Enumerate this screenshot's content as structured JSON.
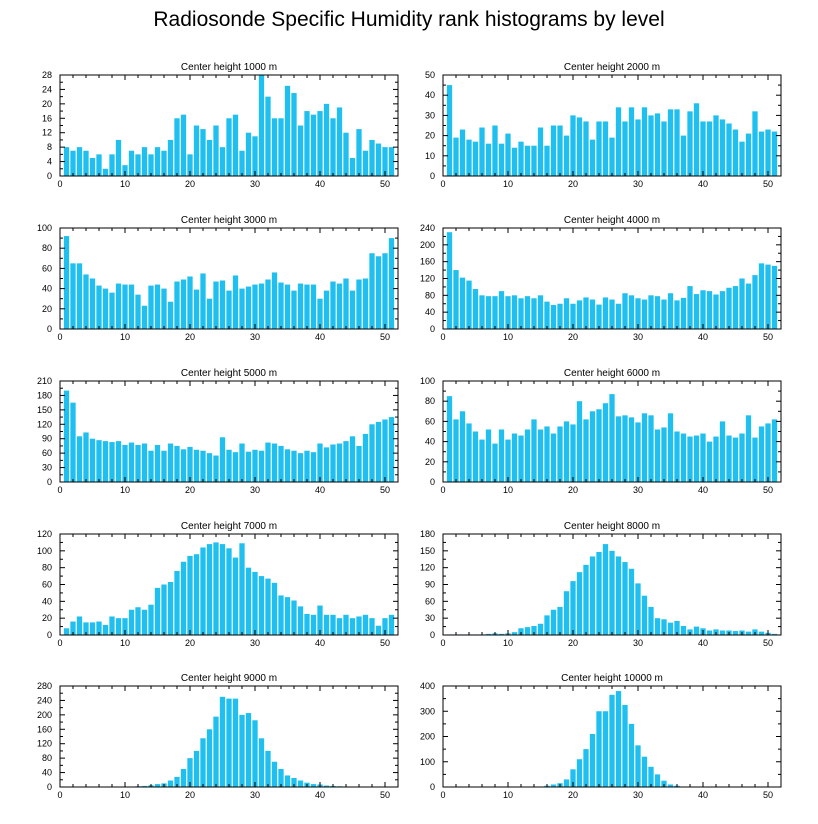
{
  "title": "Radiosonde Specific Humidity rank histograms by level",
  "bar_color": "#1fbff0",
  "xlim": [
    0,
    52
  ],
  "xticks": [
    0,
    10,
    20,
    30,
    40,
    50
  ],
  "chart_data": [
    {
      "type": "bar",
      "title": "Center height 1000 m",
      "ylim": [
        0,
        28
      ],
      "yticks": [
        0,
        4,
        8,
        12,
        16,
        20,
        24,
        28
      ],
      "x": [
        1,
        2,
        3,
        4,
        5,
        6,
        7,
        8,
        9,
        10,
        11,
        12,
        13,
        14,
        15,
        16,
        17,
        18,
        19,
        20,
        21,
        22,
        23,
        24,
        25,
        26,
        27,
        28,
        29,
        30,
        31,
        32,
        33,
        34,
        35,
        36,
        37,
        38,
        39,
        40,
        41,
        42,
        43,
        44,
        45,
        46,
        47,
        48,
        49,
        50,
        51
      ],
      "values": [
        8,
        7,
        8,
        7,
        5,
        6,
        2,
        6,
        10,
        3,
        7,
        6,
        8,
        6,
        8,
        7,
        10,
        16,
        17,
        6,
        14,
        13,
        10,
        14,
        8,
        16,
        17,
        7,
        12,
        11,
        28,
        22,
        16,
        16,
        25,
        23,
        14,
        18,
        17,
        18,
        20,
        16,
        19,
        12,
        5,
        13,
        7,
        10,
        9,
        8,
        8
      ]
    },
    {
      "type": "bar",
      "title": "Center height 2000 m",
      "ylim": [
        0,
        50
      ],
      "yticks": [
        0,
        10,
        20,
        30,
        40,
        50
      ],
      "x": [
        1,
        2,
        3,
        4,
        5,
        6,
        7,
        8,
        9,
        10,
        11,
        12,
        13,
        14,
        15,
        16,
        17,
        18,
        19,
        20,
        21,
        22,
        23,
        24,
        25,
        26,
        27,
        28,
        29,
        30,
        31,
        32,
        33,
        34,
        35,
        36,
        37,
        38,
        39,
        40,
        41,
        42,
        43,
        44,
        45,
        46,
        47,
        48,
        49,
        50,
        51
      ],
      "values": [
        45,
        19,
        23,
        18,
        17,
        24,
        16,
        25,
        16,
        21,
        14,
        17,
        15,
        15,
        24,
        15,
        25,
        25,
        20,
        30,
        29,
        27,
        18,
        27,
        27,
        19,
        34,
        27,
        34,
        28,
        34,
        30,
        31,
        27,
        33,
        33,
        20,
        32,
        36,
        27,
        27,
        30,
        28,
        26,
        23,
        17,
        21,
        32,
        22,
        23,
        22
      ]
    },
    {
      "type": "bar",
      "title": "Center height 3000 m",
      "ylim": [
        0,
        100
      ],
      "yticks": [
        0,
        20,
        40,
        60,
        80,
        100
      ],
      "x": [
        1,
        2,
        3,
        4,
        5,
        6,
        7,
        8,
        9,
        10,
        11,
        12,
        13,
        14,
        15,
        16,
        17,
        18,
        19,
        20,
        21,
        22,
        23,
        24,
        25,
        26,
        27,
        28,
        29,
        30,
        31,
        32,
        33,
        34,
        35,
        36,
        37,
        38,
        39,
        40,
        41,
        42,
        43,
        44,
        45,
        46,
        47,
        48,
        49,
        50,
        51
      ],
      "values": [
        92,
        65,
        65,
        54,
        50,
        43,
        40,
        36,
        45,
        44,
        44,
        34,
        23,
        43,
        44,
        40,
        27,
        47,
        49,
        52,
        39,
        55,
        30,
        47,
        48,
        38,
        53,
        40,
        42,
        44,
        45,
        49,
        56,
        46,
        44,
        38,
        45,
        44,
        44,
        30,
        38,
        47,
        45,
        50,
        38,
        49,
        50,
        75,
        72,
        75,
        90
      ]
    },
    {
      "type": "bar",
      "title": "Center height 4000 m",
      "ylim": [
        0,
        240
      ],
      "yticks": [
        0,
        40,
        80,
        120,
        160,
        200,
        240
      ],
      "x": [
        1,
        2,
        3,
        4,
        5,
        6,
        7,
        8,
        9,
        10,
        11,
        12,
        13,
        14,
        15,
        16,
        17,
        18,
        19,
        20,
        21,
        22,
        23,
        24,
        25,
        26,
        27,
        28,
        29,
        30,
        31,
        32,
        33,
        34,
        35,
        36,
        37,
        38,
        39,
        40,
        41,
        42,
        43,
        44,
        45,
        46,
        47,
        48,
        49,
        50,
        51
      ],
      "values": [
        230,
        140,
        122,
        115,
        95,
        80,
        78,
        78,
        90,
        78,
        80,
        73,
        78,
        73,
        80,
        65,
        57,
        60,
        73,
        60,
        68,
        75,
        70,
        58,
        75,
        70,
        60,
        85,
        80,
        73,
        70,
        80,
        78,
        70,
        85,
        68,
        74,
        102,
        83,
        92,
        90,
        82,
        90,
        98,
        102,
        120,
        108,
        128,
        156,
        153,
        150
      ]
    },
    {
      "type": "bar",
      "title": "Center height 5000 m",
      "ylim": [
        0,
        210
      ],
      "yticks": [
        0,
        30,
        60,
        90,
        120,
        150,
        180,
        210
      ],
      "x": [
        1,
        2,
        3,
        4,
        5,
        6,
        7,
        8,
        9,
        10,
        11,
        12,
        13,
        14,
        15,
        16,
        17,
        18,
        19,
        20,
        21,
        22,
        23,
        24,
        25,
        26,
        27,
        28,
        29,
        30,
        31,
        32,
        33,
        34,
        35,
        36,
        37,
        38,
        39,
        40,
        41,
        42,
        43,
        44,
        45,
        46,
        47,
        48,
        49,
        50,
        51
      ],
      "values": [
        190,
        165,
        95,
        103,
        90,
        87,
        85,
        83,
        85,
        77,
        82,
        77,
        80,
        65,
        77,
        65,
        80,
        75,
        68,
        73,
        67,
        65,
        60,
        55,
        93,
        67,
        62,
        80,
        63,
        67,
        65,
        82,
        80,
        75,
        68,
        65,
        60,
        65,
        62,
        80,
        72,
        78,
        80,
        85,
        95,
        75,
        100,
        120,
        125,
        130,
        135
      ]
    },
    {
      "type": "bar",
      "title": "Center height 6000 m",
      "ylim": [
        0,
        100
      ],
      "yticks": [
        0,
        20,
        40,
        60,
        80,
        100
      ],
      "x": [
        1,
        2,
        3,
        4,
        5,
        6,
        7,
        8,
        9,
        10,
        11,
        12,
        13,
        14,
        15,
        16,
        17,
        18,
        19,
        20,
        21,
        22,
        23,
        24,
        25,
        26,
        27,
        28,
        29,
        30,
        31,
        32,
        33,
        34,
        35,
        36,
        37,
        38,
        39,
        40,
        41,
        42,
        43,
        44,
        45,
        46,
        47,
        48,
        49,
        50,
        51
      ],
      "values": [
        85,
        62,
        70,
        58,
        50,
        42,
        52,
        38,
        52,
        42,
        48,
        46,
        52,
        62,
        52,
        55,
        48,
        55,
        60,
        57,
        80,
        62,
        70,
        72,
        78,
        87,
        65,
        66,
        64,
        59,
        68,
        66,
        52,
        54,
        68,
        50,
        48,
        45,
        46,
        48,
        40,
        45,
        60,
        46,
        44,
        48,
        66,
        44,
        55,
        58,
        62
      ]
    },
    {
      "type": "bar",
      "title": "Center height 7000 m",
      "ylim": [
        0,
        120
      ],
      "yticks": [
        0,
        20,
        40,
        60,
        80,
        100,
        120
      ],
      "x": [
        1,
        2,
        3,
        4,
        5,
        6,
        7,
        8,
        9,
        10,
        11,
        12,
        13,
        14,
        15,
        16,
        17,
        18,
        19,
        20,
        21,
        22,
        23,
        24,
        25,
        26,
        27,
        28,
        29,
        30,
        31,
        32,
        33,
        34,
        35,
        36,
        37,
        38,
        39,
        40,
        41,
        42,
        43,
        44,
        45,
        46,
        47,
        48,
        49,
        50,
        51
      ],
      "values": [
        8,
        16,
        22,
        15,
        15,
        16,
        12,
        22,
        20,
        20,
        30,
        33,
        30,
        36,
        56,
        60,
        63,
        76,
        87,
        94,
        96,
        104,
        108,
        110,
        108,
        103,
        92,
        109,
        80,
        75,
        70,
        67,
        62,
        47,
        45,
        41,
        34,
        25,
        24,
        35,
        24,
        24,
        20,
        24,
        20,
        22,
        24,
        20,
        11,
        20,
        24
      ]
    },
    {
      "type": "bar",
      "title": "Center height 8000 m",
      "ylim": [
        0,
        180
      ],
      "yticks": [
        0,
        30,
        60,
        90,
        120,
        150,
        180
      ],
      "x": [
        1,
        2,
        3,
        4,
        5,
        6,
        7,
        8,
        9,
        10,
        11,
        12,
        13,
        14,
        15,
        16,
        17,
        18,
        19,
        20,
        21,
        22,
        23,
        24,
        25,
        26,
        27,
        28,
        29,
        30,
        31,
        32,
        33,
        34,
        35,
        36,
        37,
        38,
        39,
        40,
        41,
        42,
        43,
        44,
        45,
        46,
        47,
        48,
        49,
        50,
        51
      ],
      "values": [
        1,
        1,
        1,
        1,
        1,
        1,
        2,
        3,
        2,
        3,
        5,
        12,
        14,
        16,
        20,
        35,
        45,
        50,
        78,
        96,
        112,
        125,
        140,
        148,
        162,
        150,
        140,
        130,
        118,
        92,
        70,
        50,
        30,
        28,
        22,
        25,
        16,
        10,
        15,
        12,
        8,
        10,
        8,
        8,
        7,
        8,
        6,
        10,
        6,
        4,
        2
      ]
    },
    {
      "type": "bar",
      "title": "Center height 9000 m",
      "ylim": [
        0,
        280
      ],
      "yticks": [
        0,
        40,
        80,
        120,
        160,
        200,
        240,
        280
      ],
      "x": [
        1,
        2,
        3,
        4,
        5,
        6,
        7,
        8,
        9,
        10,
        11,
        12,
        13,
        14,
        15,
        16,
        17,
        18,
        19,
        20,
        21,
        22,
        23,
        24,
        25,
        26,
        27,
        28,
        29,
        30,
        31,
        32,
        33,
        34,
        35,
        36,
        37,
        38,
        39,
        40,
        41,
        42,
        43,
        44,
        45,
        46,
        47,
        48,
        49,
        50,
        51
      ],
      "values": [
        0,
        0,
        0,
        0,
        0,
        0,
        0,
        0,
        0,
        0,
        1,
        2,
        3,
        5,
        8,
        10,
        18,
        28,
        50,
        80,
        100,
        135,
        160,
        195,
        250,
        245,
        245,
        200,
        205,
        185,
        135,
        100,
        70,
        50,
        32,
        25,
        18,
        12,
        8,
        7,
        4,
        3,
        2,
        1,
        1,
        0,
        0,
        0,
        0,
        0,
        0
      ]
    },
    {
      "type": "bar",
      "title": "Center height 10000 m",
      "ylim": [
        0,
        400
      ],
      "yticks": [
        0,
        100,
        200,
        300,
        400
      ],
      "x": [
        1,
        2,
        3,
        4,
        5,
        6,
        7,
        8,
        9,
        10,
        11,
        12,
        13,
        14,
        15,
        16,
        17,
        18,
        19,
        20,
        21,
        22,
        23,
        24,
        25,
        26,
        27,
        28,
        29,
        30,
        31,
        32,
        33,
        34,
        35,
        36,
        37,
        38,
        39,
        40,
        41,
        42,
        43,
        44,
        45,
        46,
        47,
        48,
        49,
        50,
        51
      ],
      "values": [
        0,
        0,
        0,
        0,
        0,
        0,
        0,
        0,
        0,
        0,
        0,
        0,
        0,
        0,
        2,
        5,
        10,
        15,
        30,
        70,
        110,
        150,
        210,
        300,
        300,
        365,
        380,
        325,
        250,
        165,
        120,
        80,
        50,
        25,
        10,
        5,
        2,
        1,
        0,
        0,
        0,
        0,
        0,
        0,
        0,
        0,
        0,
        0,
        0,
        0,
        0
      ]
    }
  ]
}
